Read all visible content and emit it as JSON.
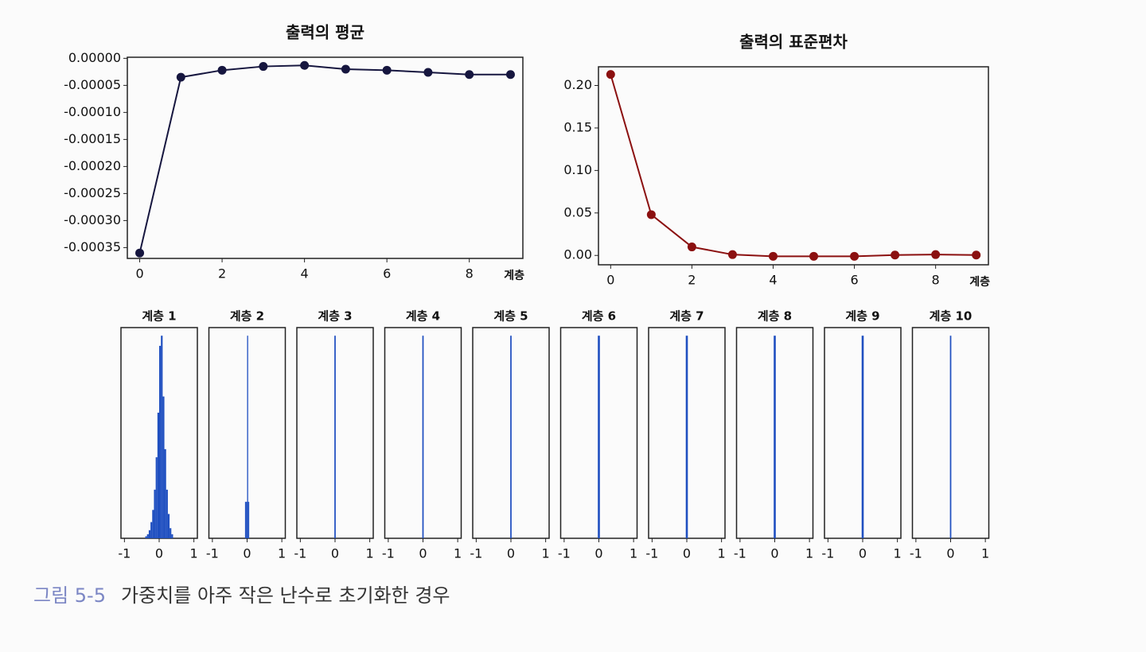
{
  "chart_data": [
    {
      "type": "line",
      "title": "출력의 평균",
      "xlabel": "계층",
      "color": "#16163f",
      "x": [
        0,
        1,
        2,
        3,
        4,
        5,
        6,
        7,
        8,
        9
      ],
      "values": [
        -0.00036,
        -3.5e-05,
        -2.2e-05,
        -1.5e-05,
        -1.3e-05,
        -2e-05,
        -2.2e-05,
        -2.6e-05,
        -3e-05,
        -3e-05
      ],
      "xlim": [
        -0.3,
        9.3
      ],
      "xticks": [
        0,
        2,
        4,
        6,
        8
      ],
      "ylim": [
        -0.00037,
        2e-06
      ],
      "yticks": [
        {
          "value": 0,
          "label": "0.00000"
        },
        {
          "value": -5e-05,
          "label": "-0.00005"
        },
        {
          "value": -0.0001,
          "label": "-0.00010"
        },
        {
          "value": -0.00015,
          "label": "-0.00015"
        },
        {
          "value": -0.0002,
          "label": "-0.00020"
        },
        {
          "value": -0.00025,
          "label": "-0.00025"
        },
        {
          "value": -0.0003,
          "label": "-0.00030"
        },
        {
          "value": -0.00035,
          "label": "-0.00035"
        }
      ]
    },
    {
      "type": "line",
      "title": "출력의 표준편차",
      "xlabel": "계층",
      "color": "#8b1010",
      "x": [
        0,
        1,
        2,
        3,
        4,
        5,
        6,
        7,
        8,
        9
      ],
      "values": [
        0.213,
        0.048,
        0.01,
        0.001,
        -0.001,
        -0.001,
        -0.001,
        0.0005,
        0.001,
        0.0005
      ],
      "xlim": [
        -0.3,
        9.3
      ],
      "xticks": [
        0,
        2,
        4,
        6,
        8
      ],
      "ylim": [
        -0.011,
        0.222
      ],
      "yticks": [
        {
          "value": 0,
          "label": "0.00"
        },
        {
          "value": 0.05,
          "label": "0.05"
        },
        {
          "value": 0.1,
          "label": "0.10"
        },
        {
          "value": 0.15,
          "label": "0.15"
        },
        {
          "value": 0.2,
          "label": "0.20"
        }
      ]
    },
    {
      "type": "histogram",
      "title": "계층 1",
      "color": "#1f4fc0",
      "xlim": [
        -1.1,
        1.1
      ],
      "xticks": [
        -1,
        0,
        1
      ],
      "ylim": [
        0,
        104
      ],
      "bins": [
        -0.4,
        -0.35,
        -0.3,
        -0.25,
        -0.2,
        -0.15,
        -0.1,
        -0.05,
        0,
        0.05,
        0.1,
        0.15,
        0.2,
        0.25,
        0.3,
        0.35,
        0.4
      ],
      "counts": [
        1,
        2,
        4,
        8,
        14,
        24,
        40,
        62,
        95,
        100,
        70,
        44,
        24,
        12,
        5,
        2
      ]
    },
    {
      "type": "histogram",
      "title": "계층 2",
      "color": "#1f4fc0",
      "xlim": [
        -1.1,
        1.1
      ],
      "xticks": [
        -1,
        0,
        1
      ],
      "ylim": [
        0,
        104
      ],
      "bins": [
        -0.06,
        -0.03,
        0,
        0.03,
        0.06
      ],
      "counts": [
        18,
        18,
        100,
        18
      ]
    },
    {
      "type": "histogram",
      "title": "계층 3",
      "color": "#1f4fc0",
      "xlim": [
        -1.1,
        1.1
      ],
      "xticks": [
        -1,
        0,
        1
      ],
      "ylim": [
        0,
        104
      ],
      "bins": [
        -0.02,
        0.02
      ],
      "counts": [
        100
      ]
    },
    {
      "type": "histogram",
      "title": "계층 4",
      "color": "#1f4fc0",
      "xlim": [
        -1.1,
        1.1
      ],
      "xticks": [
        -1,
        0,
        1
      ],
      "ylim": [
        0,
        104
      ],
      "bins": [
        -0.02,
        0.02
      ],
      "counts": [
        100
      ]
    },
    {
      "type": "histogram",
      "title": "계층 5",
      "color": "#1f4fc0",
      "xlim": [
        -1.1,
        1.1
      ],
      "xticks": [
        -1,
        0,
        1
      ],
      "ylim": [
        0,
        104
      ],
      "bins": [
        -0.02,
        0.02
      ],
      "counts": [
        100
      ]
    },
    {
      "type": "histogram",
      "title": "계층 6",
      "color": "#1f4fc0",
      "xlim": [
        -1.1,
        1.1
      ],
      "xticks": [
        -1,
        0,
        1
      ],
      "ylim": [
        0,
        104
      ],
      "bins": [
        -0.03,
        0.03
      ],
      "counts": [
        100
      ]
    },
    {
      "type": "histogram",
      "title": "계층 7",
      "color": "#1f4fc0",
      "xlim": [
        -1.1,
        1.1
      ],
      "xticks": [
        -1,
        0,
        1
      ],
      "ylim": [
        0,
        104
      ],
      "bins": [
        -0.03,
        0.03
      ],
      "counts": [
        100
      ]
    },
    {
      "type": "histogram",
      "title": "계층 8",
      "color": "#1f4fc0",
      "xlim": [
        -1.1,
        1.1
      ],
      "xticks": [
        -1,
        0,
        1
      ],
      "ylim": [
        0,
        104
      ],
      "bins": [
        -0.03,
        0.03
      ],
      "counts": [
        100
      ]
    },
    {
      "type": "histogram",
      "title": "계층 9",
      "color": "#1f4fc0",
      "xlim": [
        -1.1,
        1.1
      ],
      "xticks": [
        -1,
        0,
        1
      ],
      "ylim": [
        0,
        104
      ],
      "bins": [
        -0.03,
        0.03
      ],
      "counts": [
        100
      ]
    },
    {
      "type": "histogram",
      "title": "계층 10",
      "color": "#1f4fc0",
      "xlim": [
        -1.1,
        1.1
      ],
      "xticks": [
        -1,
        0,
        1
      ],
      "ylim": [
        0,
        104
      ],
      "bins": [
        -0.02,
        0.02
      ],
      "counts": [
        100
      ]
    }
  ],
  "caption": {
    "label": "그림 5-5",
    "text": "가중치를 아주 작은 난수로 초기화한 경우"
  }
}
